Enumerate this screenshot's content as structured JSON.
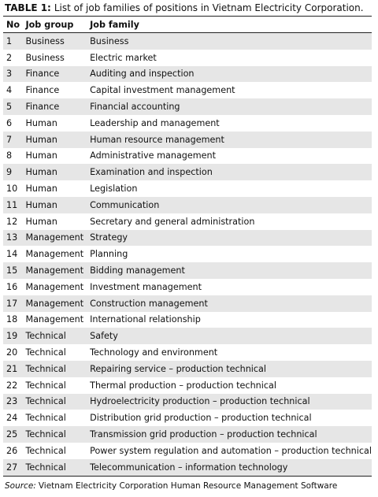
{
  "caption": {
    "label": "TABLE 1:",
    "text": "List of job families of positions in Vietnam Electricity Corporation."
  },
  "table": {
    "header": [
      "No",
      "Job group",
      "Job family"
    ],
    "rows": [
      [
        1,
        "Business",
        "Business"
      ],
      [
        2,
        "Business",
        "Electric market"
      ],
      [
        3,
        "Finance",
        "Auditing and inspection"
      ],
      [
        4,
        "Finance",
        "Capital investment management"
      ],
      [
        5,
        "Finance",
        "Financial accounting"
      ],
      [
        6,
        "Human",
        "Leadership and management"
      ],
      [
        7,
        "Human",
        "Human resource management"
      ],
      [
        8,
        "Human",
        "Administrative management"
      ],
      [
        9,
        "Human",
        "Examination and inspection"
      ],
      [
        10,
        "Human",
        "Legislation"
      ],
      [
        11,
        "Human",
        "Communication"
      ],
      [
        12,
        "Human",
        "Secretary and general administration"
      ],
      [
        13,
        "Management",
        "Strategy"
      ],
      [
        14,
        "Management",
        "Planning"
      ],
      [
        15,
        "Management",
        "Bidding management"
      ],
      [
        16,
        "Management",
        "Investment management"
      ],
      [
        17,
        "Management",
        "Construction management"
      ],
      [
        18,
        "Management",
        "International relationship"
      ],
      [
        19,
        "Technical",
        "Safety"
      ],
      [
        20,
        "Technical",
        "Technology and environment"
      ],
      [
        21,
        "Technical",
        "Repairing service – production technical"
      ],
      [
        22,
        "Technical",
        "Thermal production – production technical"
      ],
      [
        23,
        "Technical",
        "Hydroelectricity production – production technical"
      ],
      [
        24,
        "Technical",
        "Distribution grid production – production technical"
      ],
      [
        25,
        "Technical",
        "Transmission grid production – production technical"
      ],
      [
        26,
        "Technical",
        "Power system regulation and automation – production technical"
      ],
      [
        27,
        "Technical",
        "Telecommunication – information technology"
      ]
    ]
  },
  "source": {
    "label": "Source:",
    "text": "Vietnam Electricity Corporation Human Resource Management Software"
  }
}
